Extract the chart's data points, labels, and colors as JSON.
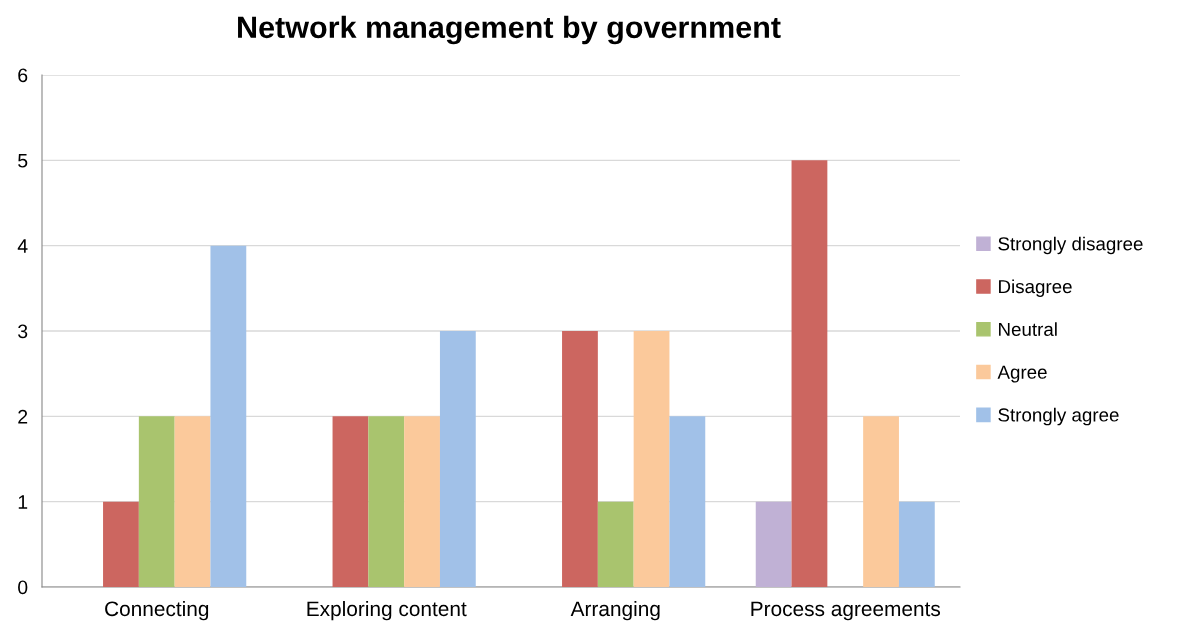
{
  "chart_data": {
    "type": "bar",
    "title": "Network management by government",
    "categories": [
      "Connecting",
      "Exploring content",
      "Arranging",
      "Process agreements"
    ],
    "series": [
      {
        "name": "Strongly disagree",
        "color": "#c0b1d5",
        "values": [
          0,
          0,
          0,
          1
        ]
      },
      {
        "name": "Disagree",
        "color": "#cc6660",
        "values": [
          1,
          2,
          3,
          5
        ]
      },
      {
        "name": "Neutral",
        "color": "#a9c46e",
        "values": [
          2,
          2,
          1,
          0
        ]
      },
      {
        "name": "Agree",
        "color": "#fbc99b",
        "values": [
          2,
          2,
          3,
          2
        ]
      },
      {
        "name": "Strongly agree",
        "color": "#a1c1e8",
        "values": [
          4,
          3,
          2,
          1
        ]
      }
    ],
    "ylim": [
      0,
      6
    ],
    "yticks": [
      0,
      1,
      2,
      3,
      4,
      5,
      6
    ],
    "grid": "y",
    "legend": "right"
  }
}
